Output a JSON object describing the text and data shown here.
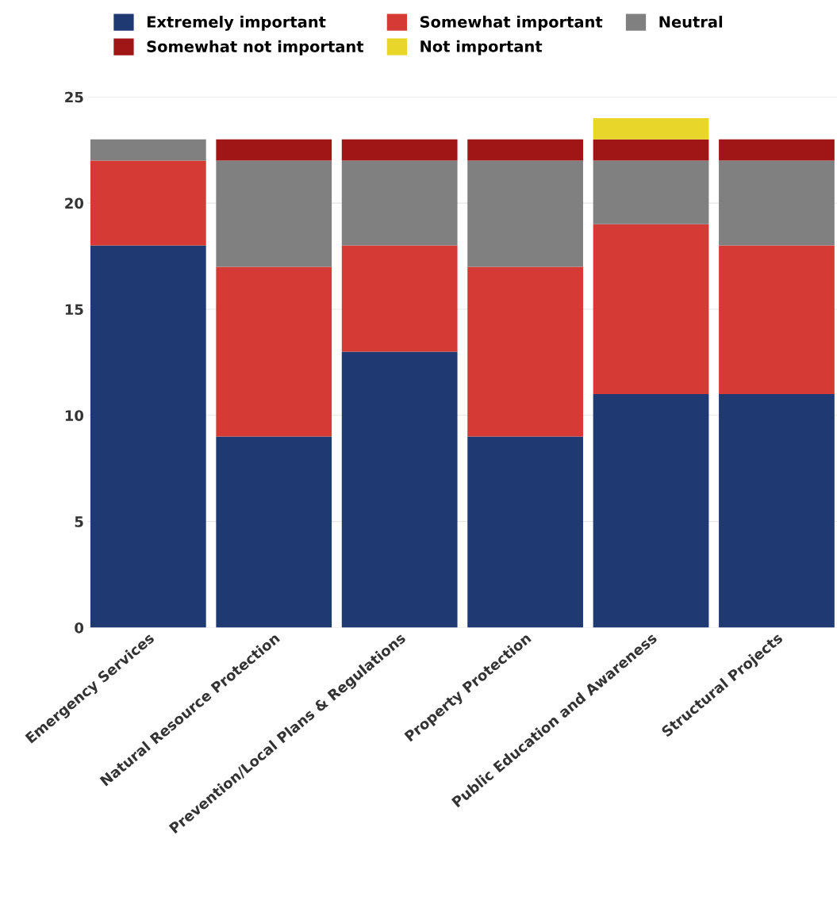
{
  "chart_data": {
    "type": "bar",
    "stacked": true,
    "categories": [
      "Emergency Services",
      "Natural Resource Protection",
      "Prevention/Local Plans & Regulations",
      "Property Protection",
      "Public Education and Awareness",
      "Structural Projects"
    ],
    "series": [
      {
        "name": "Extremely important",
        "color": "#1f3a73",
        "values": [
          18,
          9,
          13,
          9,
          11,
          11
        ]
      },
      {
        "name": "Somewhat important",
        "color": "#d63a35",
        "values": [
          4,
          8,
          5,
          8,
          8,
          7
        ]
      },
      {
        "name": "Neutral",
        "color": "#808080",
        "values": [
          1,
          5,
          4,
          5,
          3,
          4
        ]
      },
      {
        "name": "Somewhat not important",
        "color": "#a01515",
        "values": [
          0,
          1,
          1,
          1,
          1,
          1
        ]
      },
      {
        "name": "Not important",
        "color": "#e8d62a",
        "values": [
          0,
          0,
          0,
          0,
          1,
          0
        ]
      }
    ],
    "ylim": [
      0,
      25
    ],
    "yticks": [
      0,
      5,
      10,
      15,
      20,
      25
    ],
    "grid": "y",
    "legend": "top"
  }
}
